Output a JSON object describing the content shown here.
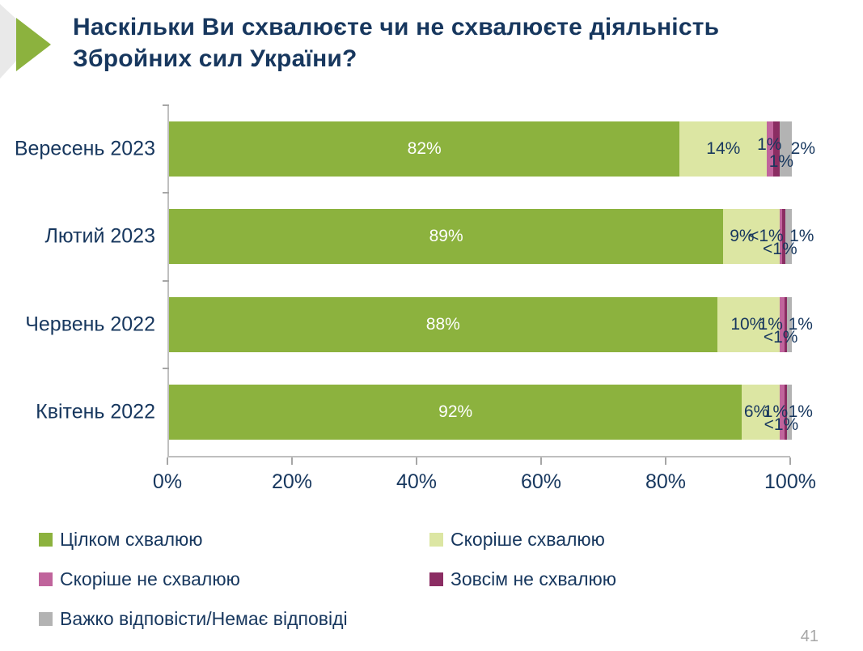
{
  "title": "Наскільки Ви схвалюєте чи не схвалюєте діяльність\nЗбройних сил України?",
  "page_number": "41",
  "colors": {
    "title_text": "#17375E",
    "axis_text": "#17375E",
    "axis_line": "#BFBFBF",
    "tick": "#A6A6A6",
    "bar_label_dark": "#17375E",
    "bar_label_light": "#FFFFFF",
    "accent_green": "#8CB23E",
    "corner_gray": "#E9E9E9",
    "page_number_gray": "#A6A6A6"
  },
  "icons": {
    "corner_green_arrow": "green-arrow-icon",
    "corner_gray_arrow": "gray-arrow-icon"
  },
  "chart_data": {
    "type": "bar",
    "orientation": "horizontal",
    "stacked": true,
    "grid": false,
    "legend_position": "bottom",
    "xlim": [
      0,
      100
    ],
    "x_ticks": [
      "0%",
      "20%",
      "40%",
      "60%",
      "80%",
      "100%"
    ],
    "categories": [
      "Вересень 2023",
      "Лютий 2023",
      "Червень 2022",
      "Квітень 2022"
    ],
    "series": [
      {
        "name": "Цілком схвалюю",
        "color": "#8CB23E",
        "values": [
          82,
          89,
          88,
          92
        ]
      },
      {
        "name": "Скоріше схвалюю",
        "color": "#DCE6A3",
        "values": [
          14,
          9,
          10,
          6
        ]
      },
      {
        "name": "Скоріше не схвалюю",
        "color": "#C0649C",
        "values": [
          1,
          "<1",
          1,
          1
        ]
      },
      {
        "name": "Зовсім не схвалюю",
        "color": "#8B2D63",
        "values": [
          1,
          "<1",
          "<1",
          "<1"
        ]
      },
      {
        "name": "Важко відповісти/Немає відповіді",
        "color": "#B3B3B3",
        "values": [
          2,
          1,
          1,
          1
        ]
      }
    ],
    "display_widths": [
      [
        82,
        14,
        1.05,
        0.95,
        2.0
      ],
      [
        89,
        9,
        0.5,
        0.5,
        1.0
      ],
      [
        88,
        10,
        0.8,
        0.4,
        0.8
      ],
      [
        92,
        6,
        0.8,
        0.4,
        0.8
      ]
    ],
    "row_labels": [
      [
        {
          "text": "82%",
          "x": 41,
          "line": "mid",
          "color": "#FFFFFF"
        },
        {
          "text": "14%",
          "x": 89,
          "line": "mid"
        },
        {
          "text": "1%",
          "x": 96.4,
          "line": "up"
        },
        {
          "text": "1%",
          "x": 98.3,
          "line": "low"
        },
        {
          "text": "2%",
          "x": 101.8,
          "line": "mid"
        }
      ],
      [
        {
          "text": "89%",
          "x": 44.5,
          "line": "mid",
          "color": "#FFFFFF"
        },
        {
          "text": "9%",
          "x": 92.0,
          "line": "mid"
        },
        {
          "text": "<1%",
          "x": 95.9,
          "line": "mid"
        },
        {
          "text": "1%",
          "x": 101.6,
          "line": "mid"
        },
        {
          "text": "<1%",
          "x": 98.1,
          "line": "low"
        }
      ],
      [
        {
          "text": "88%",
          "x": 44,
          "line": "mid",
          "color": "#FFFFFF"
        },
        {
          "text": "10%",
          "x": 92.9,
          "line": "mid"
        },
        {
          "text": "1%",
          "x": 96.6,
          "line": "mid"
        },
        {
          "text": "1%",
          "x": 101.4,
          "line": "mid"
        },
        {
          "text": "<1%",
          "x": 98.2,
          "line": "low"
        }
      ],
      [
        {
          "text": "92%",
          "x": 46,
          "line": "mid",
          "color": "#FFFFFF"
        },
        {
          "text": "6%",
          "x": 94.3,
          "line": "mid"
        },
        {
          "text": "1%",
          "x": 97.4,
          "line": "mid"
        },
        {
          "text": "1%",
          "x": 101.4,
          "line": "mid"
        },
        {
          "text": "<1%",
          "x": 98.3,
          "line": "low"
        }
      ]
    ]
  }
}
